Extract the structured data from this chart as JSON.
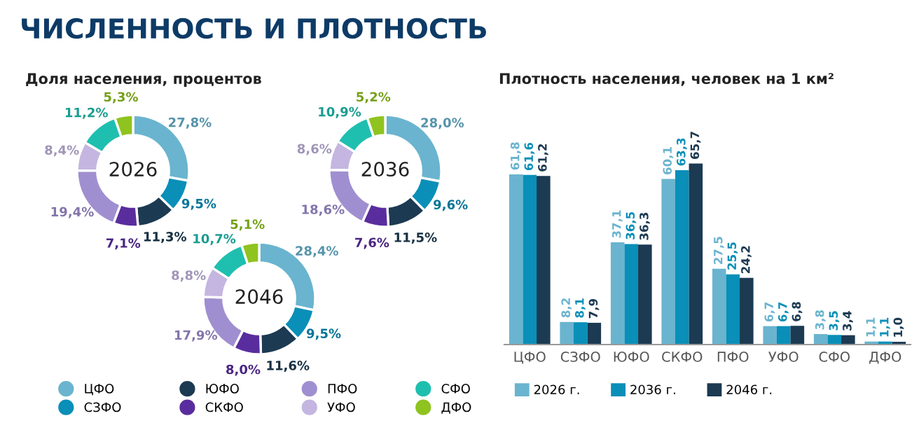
{
  "chart_data": [
    {
      "type": "donut",
      "title": "ЧИСЛЕННОСТЬ И ПЛОТНОСТЬ",
      "subtitle": "Доля населения, процентов",
      "annotations": [
        "2026"
      ],
      "legend": "bottom",
      "categories": [
        "ЦФО",
        "СЗФО",
        "ЮФО",
        "СКФО",
        "ПФО",
        "УФО",
        "СФО",
        "ДФО"
      ],
      "values": [
        27.8,
        9.5,
        11.3,
        7.1,
        19.4,
        8.4,
        11.2,
        5.3
      ],
      "value_labels": [
        "27,8%",
        "9,5%",
        "11,3%",
        "7,1%",
        "19,4%",
        "8,4%",
        "11,2%",
        "5,3%"
      ],
      "colors": [
        "#6ab4cf",
        "#0a8fb8",
        "#1c3a52",
        "#5a2d9e",
        "#a08fd0",
        "#c4b6e0",
        "#1fbfb0",
        "#8fc31f"
      ]
    },
    {
      "type": "donut",
      "annotations": [
        "2036"
      ],
      "categories": [
        null,
        null,
        null,
        null,
        null,
        null,
        null,
        null
      ],
      "values": [
        28.0,
        9.6,
        11.5,
        7.6,
        18.6,
        8.6,
        10.9,
        5.2
      ],
      "value_labels": [
        "28,0%",
        "9,6%",
        "11,5%",
        "7,6%",
        "18,6%",
        "8,6%",
        "10,9%",
        "5,2%"
      ],
      "colors": [
        "#6ab4cf",
        "#0a8fb8",
        "#1c3a52",
        "#5a2d9e",
        "#a08fd0",
        "#c4b6e0",
        "#1fbfb0",
        "#8fc31f"
      ]
    },
    {
      "type": "donut",
      "annotations": [
        "2046"
      ],
      "categories": [
        null,
        null,
        null,
        null,
        null,
        null,
        null,
        null
      ],
      "values": [
        28.4,
        9.5,
        11.6,
        8.0,
        17.9,
        8.8,
        10.7,
        5.1
      ],
      "value_labels": [
        "28,4%",
        "9,5%",
        "11,6%",
        "8,0%",
        "17,9%",
        "8,8%",
        "10,7%",
        "5,1%"
      ],
      "colors": [
        "#6ab4cf",
        "#0a8fb8",
        "#1c3a52",
        "#5a2d9e",
        "#a08fd0",
        "#c4b6e0",
        "#1fbfb0",
        "#8fc31f"
      ]
    },
    {
      "type": "bar",
      "title": "Плотность населения, человек на 1 км²",
      "legend": "bottom",
      "categories": [
        "ЦФО",
        "СЗФО",
        "ЮФО",
        "СКФО",
        "ПФО",
        "УФО",
        "СФО",
        "ДФО"
      ],
      "series": [
        {
          "name": "2026 г.",
          "color": "#6ab4cf",
          "values": [
            61.8,
            8.2,
            37.1,
            60.1,
            27.5,
            6.7,
            3.8,
            1.1
          ],
          "value_labels": [
            "61,8",
            "8,2",
            "37,1",
            "60,1",
            "27,5",
            "6,7",
            "3,8",
            "1,1"
          ]
        },
        {
          "name": "2036 г.",
          "color": "#0a8fb8",
          "values": [
            61.6,
            8.1,
            36.5,
            63.3,
            25.5,
            6.7,
            3.5,
            1.1
          ],
          "value_labels": [
            "61,6",
            "8,1",
            "36,5",
            "63,3",
            "25,5",
            "6,7",
            "3,5",
            "1,1"
          ]
        },
        {
          "name": "2046 г.",
          "color": "#1c3a52",
          "values": [
            61.2,
            7.9,
            36.3,
            65.7,
            24.2,
            6.8,
            3.4,
            1.0
          ],
          "value_labels": [
            "61,2",
            "7,9",
            "36,3",
            "65,7",
            "24,2",
            "6,8",
            "3,4",
            "1,0"
          ]
        }
      ]
    }
  ]
}
